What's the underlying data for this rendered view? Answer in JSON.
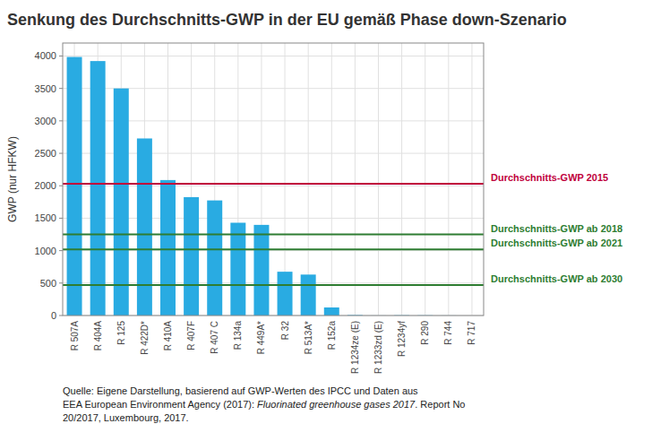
{
  "chart_data": {
    "type": "bar",
    "title": "Senkung des Durchschnitts-GWP in der EU gemäß Phase down-Szenario",
    "y_label": "GWP (nur HFKW)",
    "categories": [
      "R 507A",
      "R 404A",
      "R 125",
      "R 422D*",
      "R 410A",
      "R 407F",
      "R 407 C",
      "R 134a",
      "R 449A*",
      "R 32",
      "R 513A*",
      "R 152a",
      "R 1234ze (E)",
      "R 1233zd (E)",
      "R 1234yf",
      "R 290",
      "R 744",
      "R 717"
    ],
    "values": [
      3985,
      3922,
      3500,
      2729,
      2088,
      1825,
      1774,
      1430,
      1397,
      675,
      631,
      124,
      7,
      1,
      4,
      3,
      1,
      0
    ],
    "color": "#29abe2",
    "ylim": [
      0,
      4200
    ],
    "yticks": [
      0,
      500,
      1000,
      1500,
      2000,
      2500,
      3000,
      3500,
      4000
    ],
    "grid": true,
    "annotations": [
      {
        "y": 2030,
        "text": "Durchschnitts-GWP 2015",
        "color": "#c0003c"
      },
      {
        "y": 1250,
        "text": "Durchschnitts-GWP ab 2018",
        "color": "#2e7d32"
      },
      {
        "y": 1020,
        "text": "Durchschnitts-GWP ab 2021",
        "color": "#2e7d32"
      },
      {
        "y": 470,
        "text": "Durchschnitts-GWP ab 2030",
        "color": "#2e7d32"
      }
    ],
    "caption": [
      [
        "Quelle: Eigene Darstellung, basierend auf GWP-Werten des IPCC und Daten aus"
      ],
      [
        "EEA European Environment Agency (2017): ",
        "Fluorinated greenhouse gases 2017",
        ". Report No"
      ],
      [
        "20/2017, Luxembourg, 2017."
      ]
    ]
  }
}
